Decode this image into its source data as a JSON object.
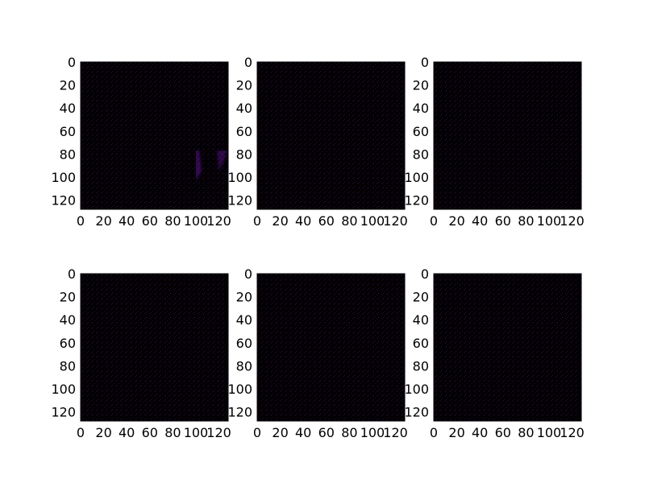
{
  "colors": {
    "background": "#000000",
    "low": "#2a0a3a",
    "mid": "#8a1ad6",
    "high": "#1e5cff",
    "peak": "#29e0d8"
  },
  "chart_data": [
    {
      "type": "heatmap",
      "xlim": [
        0,
        128
      ],
      "ylim": [
        128,
        0
      ],
      "xticks": [
        0,
        20,
        40,
        60,
        80,
        100,
        120
      ],
      "yticks": [
        0,
        20,
        40,
        60,
        80,
        100,
        120
      ],
      "grid": false
    },
    {
      "type": "heatmap",
      "xlim": [
        0,
        128
      ],
      "ylim": [
        128,
        0
      ],
      "xticks": [
        0,
        20,
        40,
        60,
        80,
        100,
        120
      ],
      "yticks": [
        0,
        20,
        40,
        60,
        80,
        100,
        120
      ],
      "grid": false
    },
    {
      "type": "heatmap",
      "xlim": [
        0,
        128
      ],
      "ylim": [
        128,
        0
      ],
      "xticks": [
        0,
        20,
        40,
        60,
        80,
        100,
        120
      ],
      "yticks": [
        0,
        20,
        40,
        60,
        80,
        100,
        120
      ],
      "grid": false
    },
    {
      "type": "heatmap",
      "xlim": [
        0,
        128
      ],
      "ylim": [
        128,
        0
      ],
      "xticks": [
        0,
        20,
        40,
        60,
        80,
        100,
        120
      ],
      "yticks": [
        0,
        20,
        40,
        60,
        80,
        100,
        120
      ],
      "grid": false
    },
    {
      "type": "heatmap",
      "xlim": [
        0,
        128
      ],
      "ylim": [
        128,
        0
      ],
      "xticks": [
        0,
        20,
        40,
        60,
        80,
        100,
        120
      ],
      "yticks": [
        0,
        20,
        40,
        60,
        80,
        100,
        120
      ],
      "grid": false
    },
    {
      "type": "heatmap",
      "xlim": [
        0,
        128
      ],
      "ylim": [
        128,
        0
      ],
      "xticks": [
        0,
        20,
        40,
        60,
        80,
        100,
        120
      ],
      "yticks": [
        0,
        20,
        40,
        60,
        80,
        100,
        120
      ],
      "grid": false
    }
  ]
}
